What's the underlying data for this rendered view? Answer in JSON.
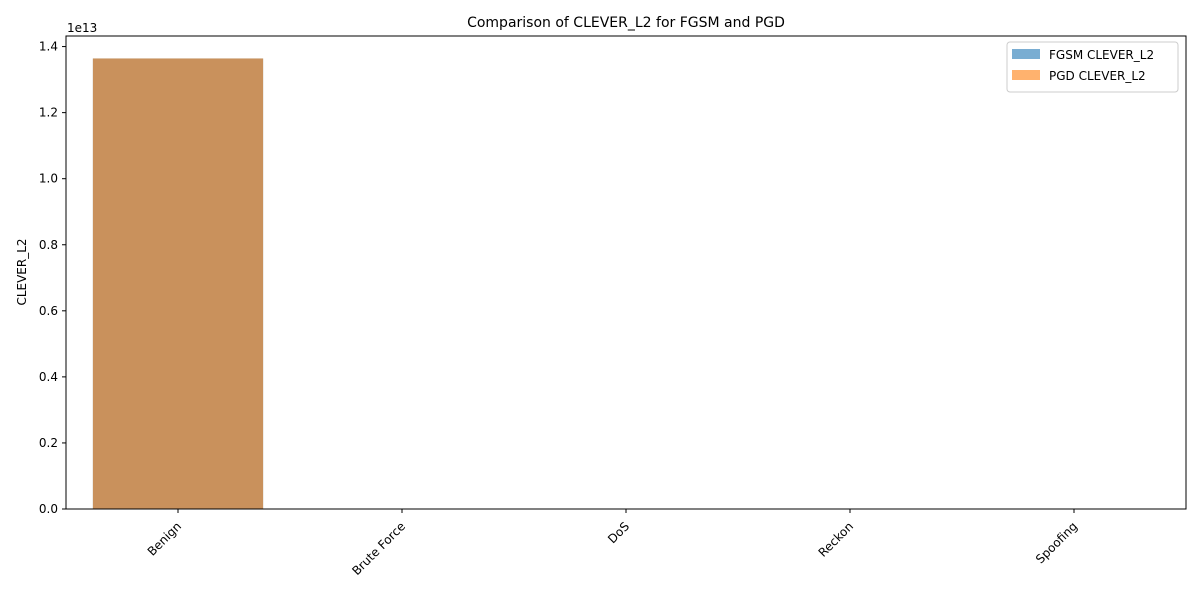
{
  "chart_data": {
    "type": "bar",
    "title": "Comparison of CLEVER_L2 for FGSM and PGD",
    "xlabel": "",
    "ylabel": "CLEVER_L2",
    "y_scale_label": "1e13",
    "categories": [
      "Benign",
      "Brute Force",
      "DoS",
      "Reckon",
      "Spoofing"
    ],
    "series": [
      {
        "name": "FGSM CLEVER_L2",
        "values": [
          13640000000000,
          0,
          0,
          0,
          0
        ],
        "color": "#1f77b4",
        "opacity": 0.6
      },
      {
        "name": "PGD CLEVER_L2",
        "values": [
          13640000000000,
          0,
          0,
          0,
          0
        ],
        "color": "#ff7f0e",
        "opacity": 0.6
      }
    ],
    "yticks": [
      0,
      0.2,
      0.4,
      0.6,
      0.8,
      1.0,
      1.2,
      1.4
    ],
    "ytick_labels": [
      "0.0",
      "0.2",
      "0.4",
      "0.6",
      "0.8",
      "1.0",
      "1.2",
      "1.4"
    ],
    "ytick_scale": 10000000000000,
    "ylim": [
      0,
      14320000000000
    ],
    "xtick_rotation": 45,
    "grid": false,
    "legend_position": "top-right"
  }
}
